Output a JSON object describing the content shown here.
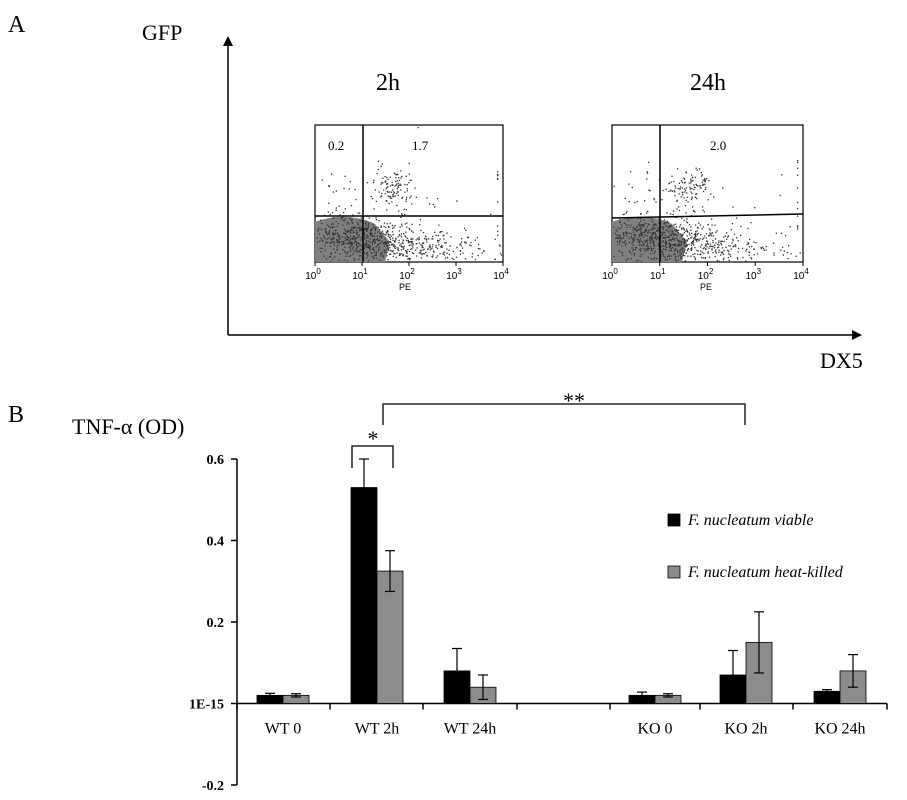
{
  "panel_a": {
    "label": "A",
    "y_axis_label": "GFP",
    "x_axis_label": "DX5",
    "plots": [
      {
        "title": "2h",
        "quadrant_values": [
          "0.2",
          "1.7"
        ],
        "x_ticks": [
          "10",
          "10",
          "10",
          "10",
          "10"
        ],
        "x_tick_exponents": [
          "0",
          "1",
          "2",
          "3",
          "4"
        ],
        "x_label": "PE"
      },
      {
        "title": "24h",
        "quadrant_values": [
          "",
          "2.0"
        ],
        "x_ticks": [
          "10",
          "10",
          "10",
          "10",
          "10"
        ],
        "x_tick_exponents": [
          "0",
          "1",
          "2",
          "3",
          "4"
        ],
        "x_label": "PE"
      }
    ]
  },
  "panel_b": {
    "label": "B",
    "significance_short": "*",
    "significance_long": "**"
  },
  "chart_data": {
    "type": "bar",
    "ylabel": "TNF-α (OD)",
    "ylim": [
      -0.2,
      0.6
    ],
    "yticks": [
      -0.2,
      1e-15,
      0.2,
      0.4,
      0.6
    ],
    "ytick_labels": [
      "-0.2",
      "1E-15",
      "0.2",
      "0.4",
      "0.6"
    ],
    "groups": [
      {
        "label": "WT 0"
      },
      {
        "label": "WT 2h"
      },
      {
        "label": "WT 24h"
      },
      {
        "label": "KO 0"
      },
      {
        "label": "KO 2h"
      },
      {
        "label": "KO 24h"
      }
    ],
    "series": [
      {
        "name": "F. nucleatum viable",
        "color": "#000000",
        "values": [
          0.02,
          0.53,
          0.08,
          0.02,
          0.07,
          0.03
        ],
        "errors": [
          0.005,
          0.07,
          0.055,
          0.008,
          0.06,
          0.004
        ]
      },
      {
        "name": "F. nucleatum heat-killed",
        "color": "#8c8c8c",
        "values": [
          0.02,
          0.325,
          0.04,
          0.02,
          0.15,
          0.08
        ],
        "errors": [
          0.004,
          0.05,
          0.03,
          0.004,
          0.075,
          0.04
        ]
      }
    ],
    "grid": false,
    "legend": "right"
  }
}
